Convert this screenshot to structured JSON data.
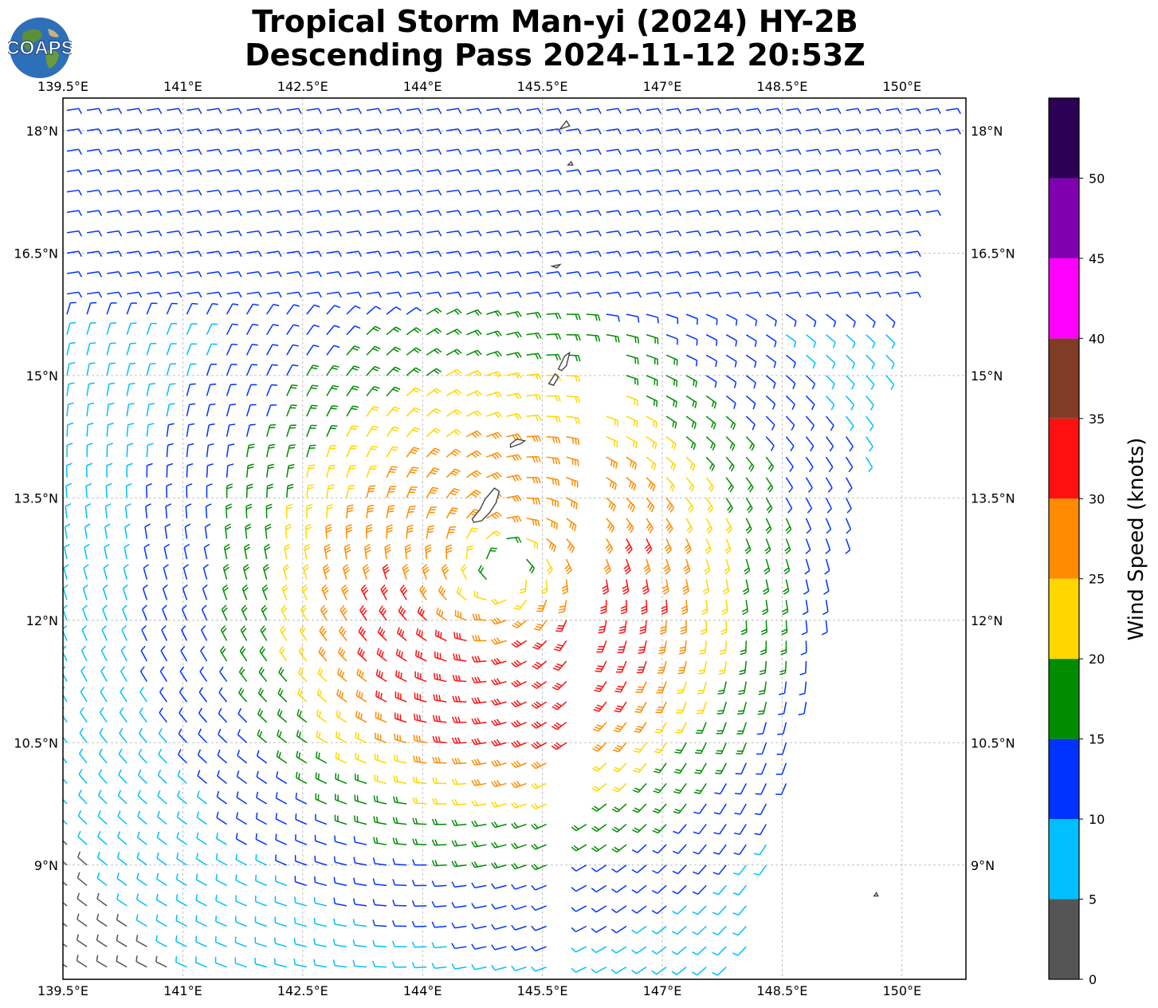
{
  "header": {
    "title_line1": "Tropical Storm Man-yi (2024) HY-2B",
    "title_line2": "Descending Pass 2024-11-12 20:53Z",
    "logo_text": "COAPS",
    "logo_icon": "globe-icon"
  },
  "map": {
    "lon_range": [
      139.5,
      150.8
    ],
    "lat_range": [
      7.6,
      18.4
    ],
    "lon_ticks": [
      {
        "value": 139.5,
        "label": "139.5°E"
      },
      {
        "value": 141.0,
        "label": "141°E"
      },
      {
        "value": 142.5,
        "label": "142.5°E"
      },
      {
        "value": 144.0,
        "label": "144°E"
      },
      {
        "value": 145.5,
        "label": "145.5°E"
      },
      {
        "value": 147.0,
        "label": "147°E"
      },
      {
        "value": 148.5,
        "label": "148.5°E"
      },
      {
        "value": 150.0,
        "label": "150°E"
      }
    ],
    "lat_ticks": [
      {
        "value": 18.0,
        "label": "18°N"
      },
      {
        "value": 16.5,
        "label": "16.5°N"
      },
      {
        "value": 15.0,
        "label": "15°N"
      },
      {
        "value": 13.5,
        "label": "13.5°N"
      },
      {
        "value": 12.0,
        "label": "12°N"
      },
      {
        "value": 10.5,
        "label": "10.5°N"
      },
      {
        "value": 9.0,
        "label": "9°N"
      }
    ],
    "grid": true,
    "storm_center": {
      "lon": 145.0,
      "lat": 12.6
    }
  },
  "colorbar": {
    "title": "Wind Speed (knots)",
    "bins": [
      {
        "min": 0,
        "max": 5,
        "color": "#555555"
      },
      {
        "min": 5,
        "max": 10,
        "color": "#00bfff"
      },
      {
        "min": 10,
        "max": 15,
        "color": "#0033ff"
      },
      {
        "min": 15,
        "max": 20,
        "color": "#008c00"
      },
      {
        "min": 20,
        "max": 25,
        "color": "#ffd700"
      },
      {
        "min": 25,
        "max": 30,
        "color": "#ff8c00"
      },
      {
        "min": 30,
        "max": 35,
        "color": "#ff1010"
      },
      {
        "min": 35,
        "max": 40,
        "color": "#803c26"
      },
      {
        "min": 40,
        "max": 45,
        "color": "#ff00ff"
      },
      {
        "min": 45,
        "max": 50,
        "color": "#8000b0"
      },
      {
        "min": 50,
        "max": 55,
        "color": "#2b0055"
      }
    ],
    "tick_labels": [
      "0",
      "5",
      "10",
      "15",
      "20",
      "25",
      "30",
      "35",
      "40",
      "45",
      "50"
    ]
  },
  "islands": [
    {
      "name": "Guam",
      "points": [
        [
          144.62,
          13.24
        ],
        [
          144.72,
          13.36
        ],
        [
          144.78,
          13.48
        ],
        [
          144.9,
          13.62
        ],
        [
          144.96,
          13.58
        ],
        [
          144.92,
          13.44
        ],
        [
          144.84,
          13.32
        ],
        [
          144.74,
          13.22
        ],
        [
          144.64,
          13.2
        ]
      ]
    },
    {
      "name": "Rota",
      "points": [
        [
          145.1,
          14.12
        ],
        [
          145.22,
          14.16
        ],
        [
          145.28,
          14.2
        ],
        [
          145.18,
          14.22
        ],
        [
          145.1,
          14.16
        ]
      ]
    },
    {
      "name": "Tinian",
      "points": [
        [
          145.58,
          14.9
        ],
        [
          145.66,
          15.02
        ],
        [
          145.7,
          14.98
        ],
        [
          145.64,
          14.88
        ]
      ]
    },
    {
      "name": "Saipan",
      "points": [
        [
          145.7,
          15.08
        ],
        [
          145.78,
          15.24
        ],
        [
          145.84,
          15.28
        ],
        [
          145.8,
          15.12
        ],
        [
          145.74,
          15.06
        ]
      ]
    },
    {
      "name": "Anatahan",
      "points": [
        [
          145.62,
          16.34
        ],
        [
          145.72,
          16.36
        ],
        [
          145.68,
          16.32
        ]
      ]
    },
    {
      "name": "Pagan",
      "points": [
        [
          145.72,
          18.02
        ],
        [
          145.8,
          18.12
        ],
        [
          145.84,
          18.06
        ]
      ]
    },
    {
      "name": "Alamagan",
      "points": [
        [
          145.82,
          17.58
        ],
        [
          145.86,
          17.62
        ],
        [
          145.88,
          17.58
        ]
      ]
    },
    {
      "name": "Ulithi",
      "points": [
        [
          149.65,
          8.62
        ],
        [
          149.68,
          8.66
        ],
        [
          149.7,
          8.62
        ]
      ]
    }
  ]
}
